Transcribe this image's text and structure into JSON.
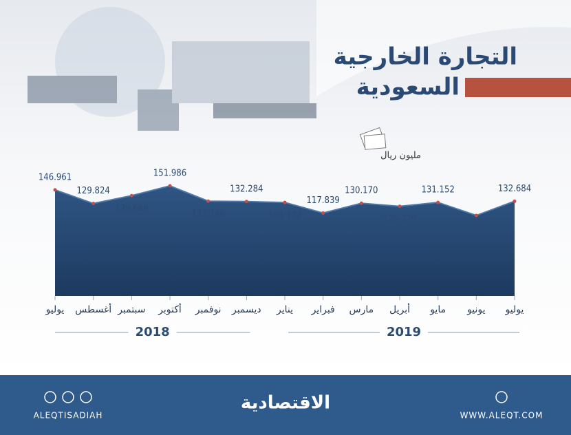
{
  "chart_data": {
    "type": "area",
    "title": "التجارة الخارجية",
    "subtitle": "السعودية",
    "unit": "مليون ريال",
    "categories": [
      "يوليو",
      "أغسطس",
      "سبتمبر",
      "أكتوبر",
      "نوفمبر",
      "ديسمبر",
      "يناير",
      "فبراير",
      "مارس",
      "أبريل",
      "مايو",
      "يونيو",
      "يوليو"
    ],
    "values": [
      146.961,
      129.824,
      139.669,
      151.986,
      132.766,
      132.284,
      131.172,
      117.839,
      130.17,
      126.279,
      131.152,
      114.814,
      132.684
    ],
    "value_labels": [
      "146.961",
      "129.824",
      "139.669",
      "151.986",
      "132.766",
      "132.284",
      "131.172",
      "117.839",
      "130.170",
      "126.279",
      "131.152",
      "114.814",
      "132.684"
    ],
    "color": "#26466d",
    "groups": [
      "2018",
      "2019"
    ]
  },
  "footer": {
    "social": "ALEQTISADIAH",
    "brand": "الاقتصادية",
    "website": "WWW.ALEQT.COM"
  }
}
